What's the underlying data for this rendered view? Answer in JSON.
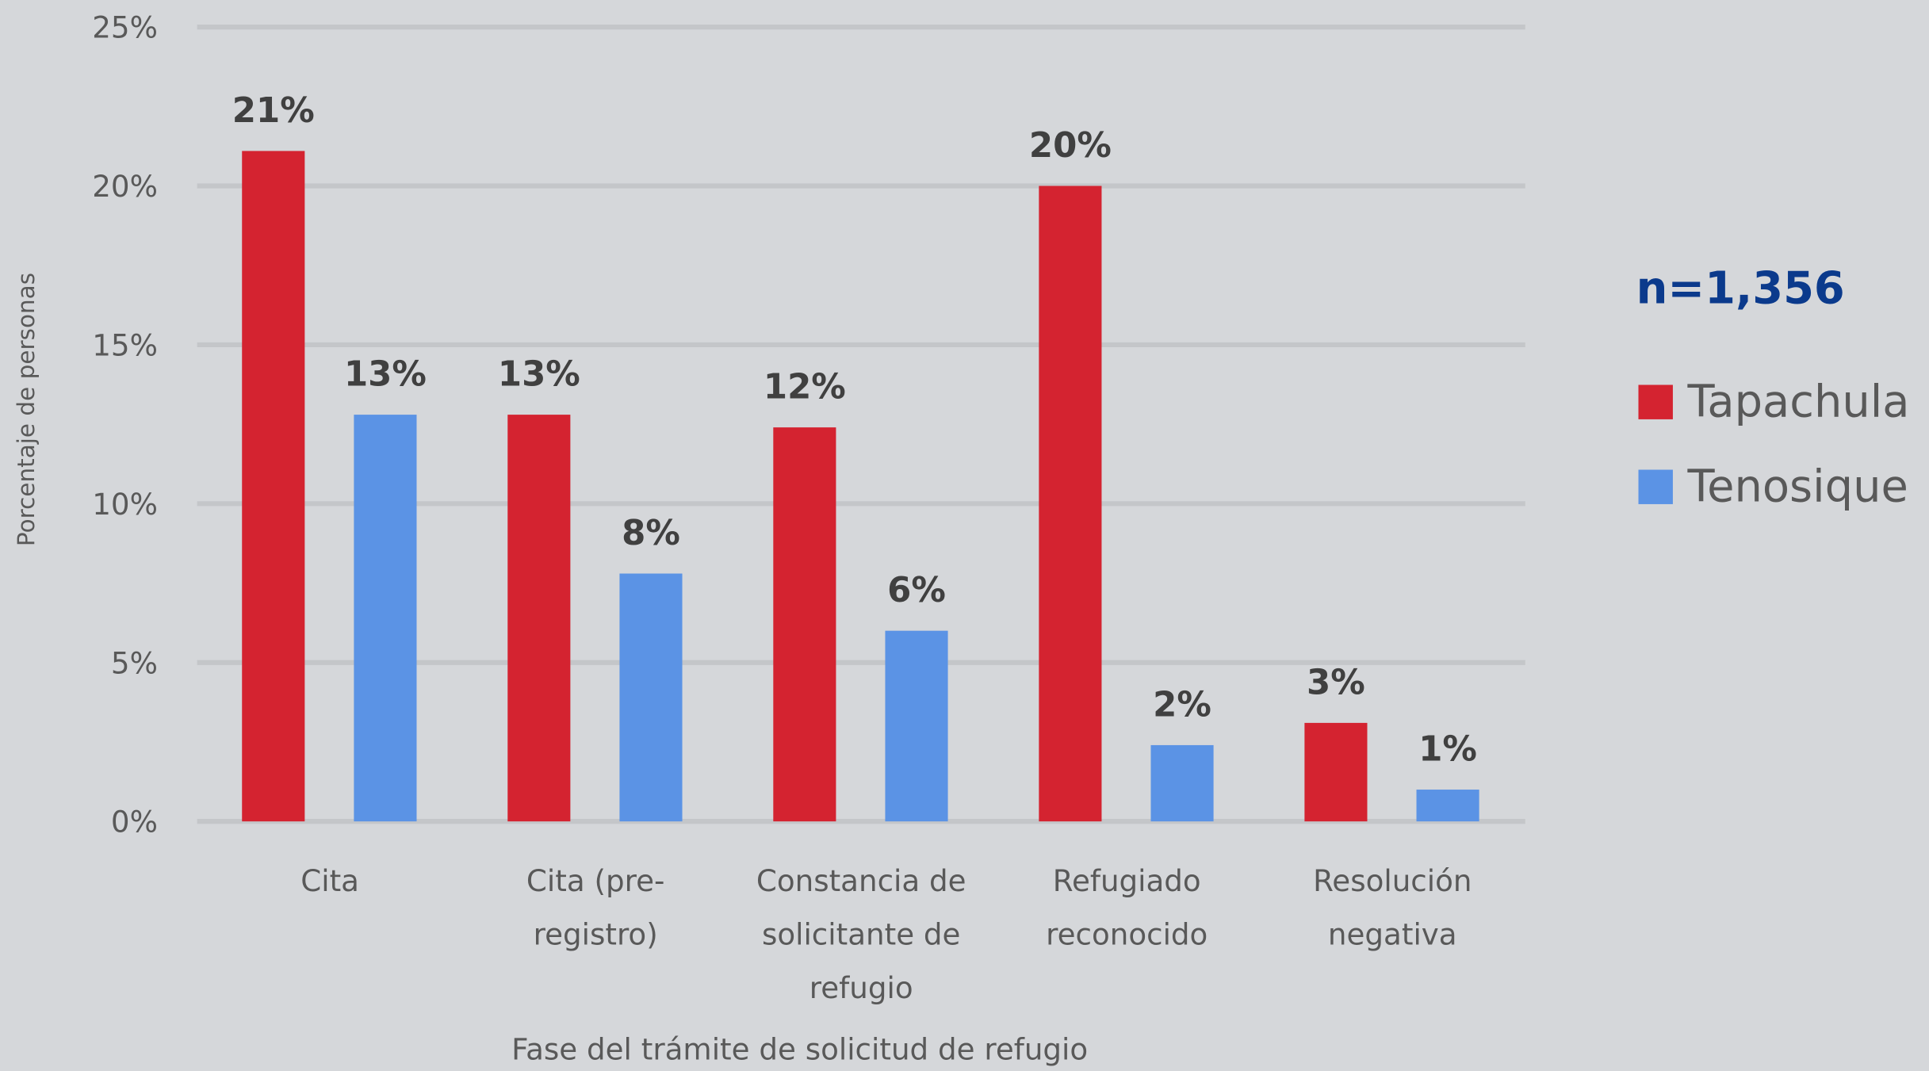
{
  "chart_data": {
    "type": "bar",
    "y_label": "Porcentaje de personas",
    "x_label": "Fase del trámite de solicitud de refugio",
    "annotation": "n=1,356",
    "categories": [
      [
        "Cita"
      ],
      [
        "Cita (pre-",
        "registro)"
      ],
      [
        "Constancia de",
        "solicitante de",
        "refugio"
      ],
      [
        "Refugiado",
        "reconocido"
      ],
      [
        "Resolución",
        "negativa"
      ]
    ],
    "series": [
      {
        "name": "Tapachula",
        "color": "#d42330",
        "values": [
          21.1,
          12.8,
          12.4,
          20.0,
          3.1
        ],
        "value_labels": [
          "21%",
          "13%",
          "12%",
          "20%",
          "3%"
        ]
      },
      {
        "name": "Tenosique",
        "color": "#5b93e5",
        "values": [
          12.8,
          7.8,
          6.0,
          2.4,
          1.0
        ],
        "value_labels": [
          "13%",
          "8%",
          "6%",
          "2%",
          "1%"
        ]
      }
    ],
    "ylim": [
      0,
      25
    ],
    "yticks": [
      {
        "value": 0,
        "label": "0%"
      },
      {
        "value": 5,
        "label": "5%"
      },
      {
        "value": 10,
        "label": "10%"
      },
      {
        "value": 15,
        "label": "15%"
      },
      {
        "value": 20,
        "label": "20%"
      },
      {
        "value": 25,
        "label": "25%"
      }
    ],
    "grid": true,
    "legend": "right"
  }
}
